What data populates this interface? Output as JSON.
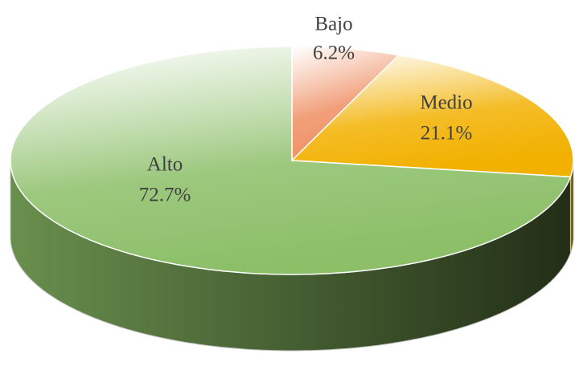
{
  "chart_data": {
    "type": "pie",
    "three_d": true,
    "categories": [
      "Bajo",
      "Medio",
      "Alto"
    ],
    "values": [
      6.2,
      21.1,
      72.7
    ],
    "value_labels": [
      "6.2%",
      "21.1%",
      "72.7%"
    ],
    "colors": [
      "#ef8f63",
      "#f2b100",
      "#8cbf68"
    ]
  }
}
